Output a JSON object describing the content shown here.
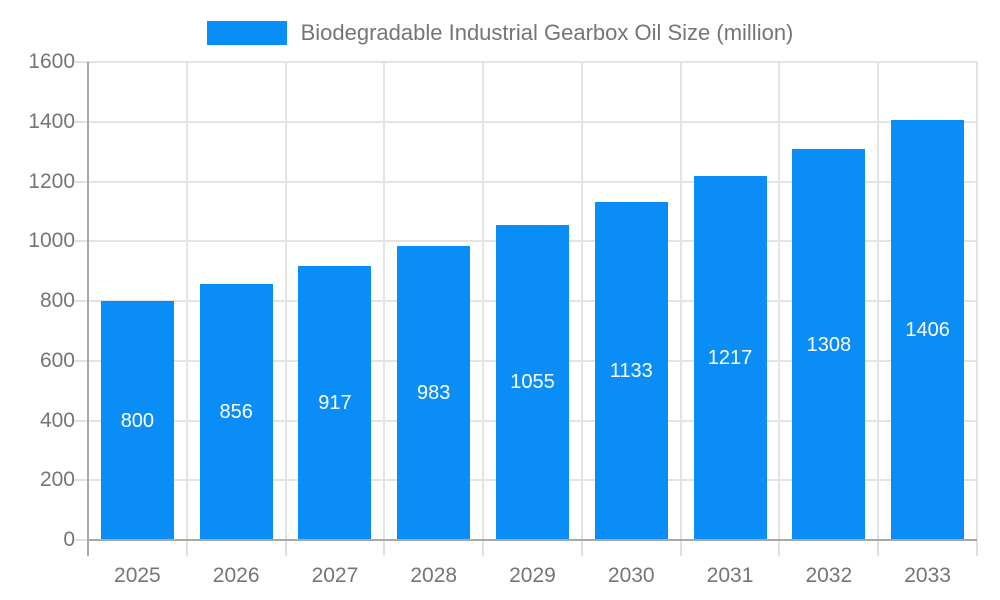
{
  "legend": {
    "label": "Biodegradable Industrial Gearbox Oil Size (million)",
    "swatch_color": "#0A8DF7"
  },
  "chart_data": {
    "type": "bar",
    "title": "Biodegradable Industrial Gearbox Oil Size (million)",
    "categories": [
      "2025",
      "2026",
      "2027",
      "2028",
      "2029",
      "2030",
      "2031",
      "2032",
      "2033"
    ],
    "values": [
      800,
      856,
      917,
      983,
      1055,
      1133,
      1217,
      1308,
      1406
    ],
    "xlabel": "",
    "ylabel": "",
    "ylim": [
      0,
      1600
    ],
    "ytick_step": 200,
    "yticks": [
      "0",
      "200",
      "400",
      "600",
      "800",
      "1000",
      "1200",
      "1400",
      "1600"
    ],
    "grid": true,
    "legend_position": "top-center",
    "value_labels": "inside-bar-at-half-height"
  },
  "colors": {
    "bar": "#0A8DF7",
    "axis_line": "#A8A8A8",
    "gridline": "#E3E3E3",
    "tick": "#E0E0E0",
    "label": "#757575",
    "value_label": "#FFFFFF",
    "background": "#FFFFFF"
  }
}
